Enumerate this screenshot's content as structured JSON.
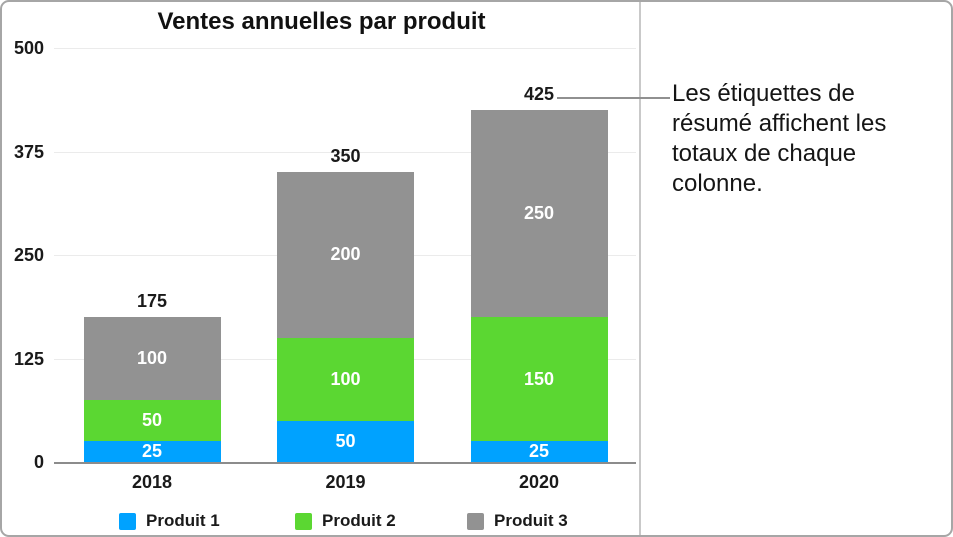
{
  "chart_data": {
    "type": "stacked_bar",
    "title": "Ventes annuelles par produit",
    "categories": [
      "2018",
      "2019",
      "2020"
    ],
    "series": [
      {
        "name": "Produit 1",
        "color": "#00A2FF",
        "values": [
          25,
          50,
          25
        ]
      },
      {
        "name": "Produit 2",
        "color": "#5BD732",
        "values": [
          50,
          100,
          150
        ]
      },
      {
        "name": "Produit 3",
        "color": "#929292",
        "values": [
          100,
          200,
          250
        ]
      }
    ],
    "totals": [
      175,
      350,
      425
    ],
    "y_ticks": [
      0,
      125,
      250,
      375,
      500
    ],
    "ylim": [
      0,
      500
    ],
    "grid": true,
    "legend_position": "bottom",
    "xlabel": "",
    "ylabel": ""
  },
  "annotation": {
    "text": "Les étiquettes de\nrésumé affichent les\ntotaux de chaque\ncolonne."
  }
}
